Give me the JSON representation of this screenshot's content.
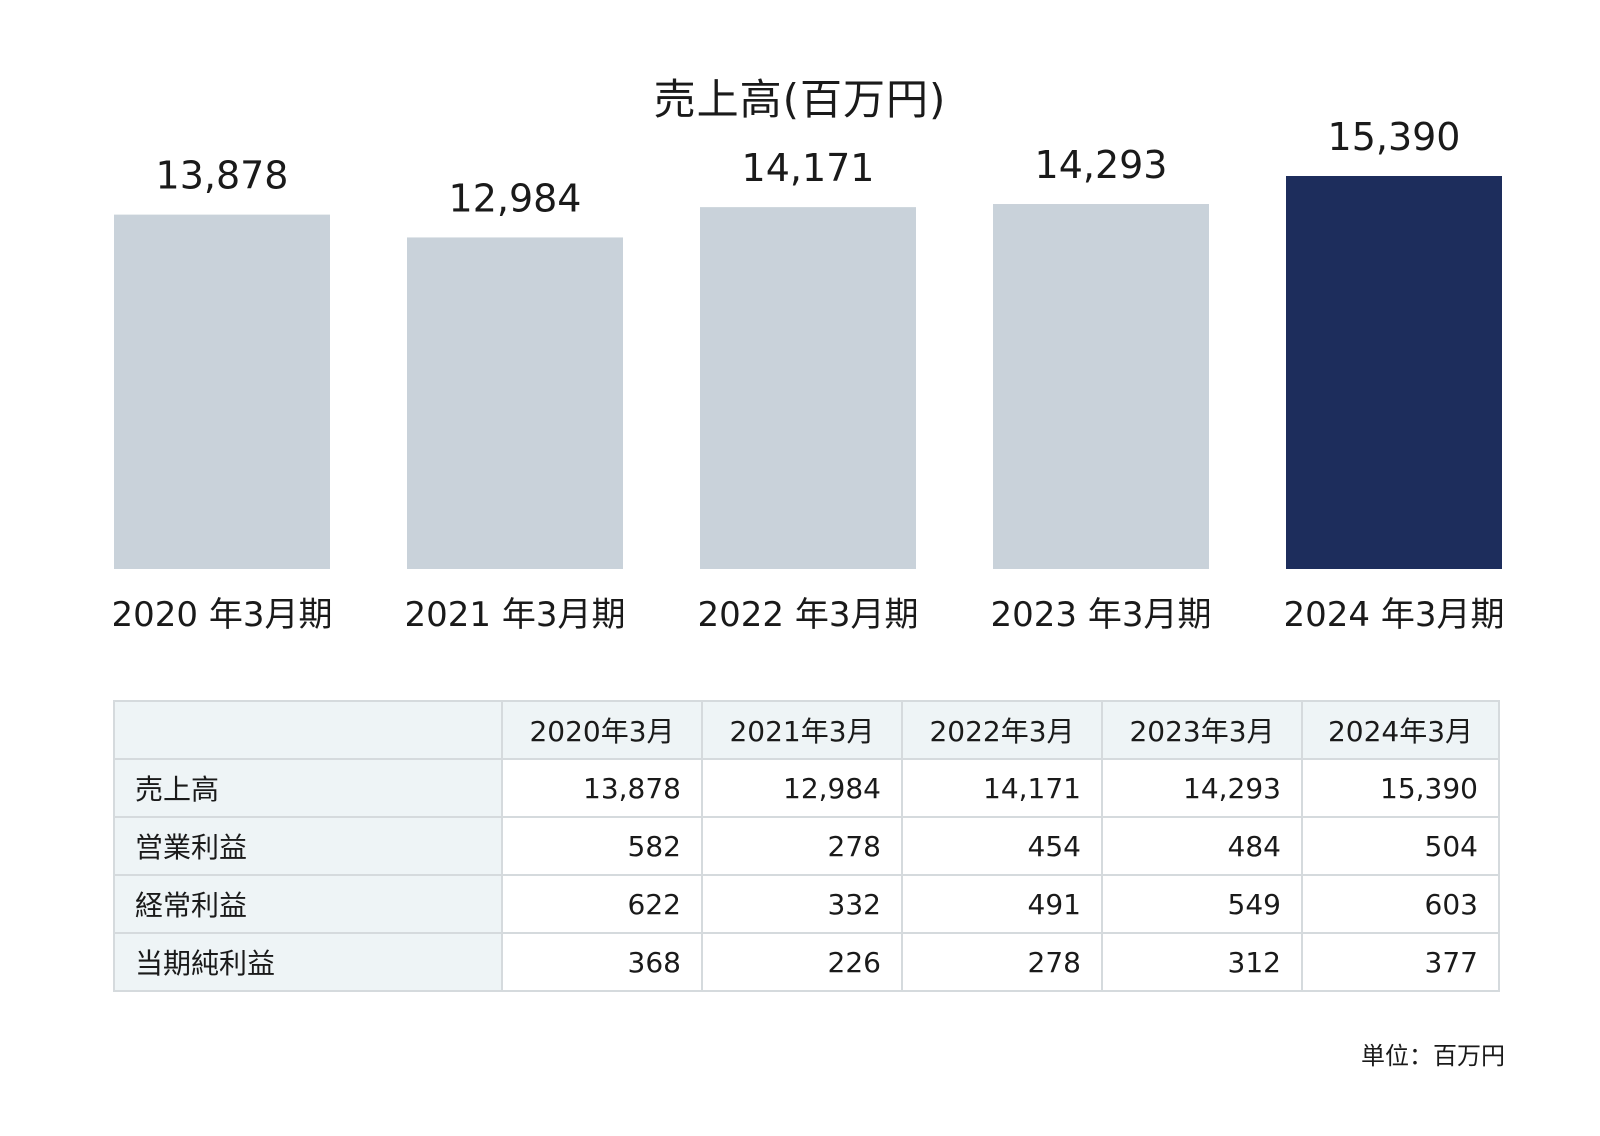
{
  "chart_data": {
    "type": "bar",
    "title": "売上高(百万円)",
    "categories": [
      "2020 年3月期",
      "2021 年3月期",
      "2022 年3月期",
      "2023 年3月期",
      "2024 年3月期"
    ],
    "values": [
      13878,
      12984,
      14171,
      14293,
      15390
    ],
    "value_labels": [
      "13,878",
      "12,984",
      "14,171",
      "14,293",
      "15,390"
    ],
    "highlight_index": 4,
    "colors": {
      "bar": "#c9d2da",
      "highlight": "#1d2d5c"
    },
    "ylim": [
      0,
      16000
    ],
    "xlabel": "",
    "ylabel": "",
    "grid": false,
    "legend": "none"
  },
  "table": {
    "columns": [
      "",
      "2020年3月",
      "2021年3月",
      "2022年3月",
      "2023年3月",
      "2024年3月"
    ],
    "rows": [
      {
        "label": "売上高",
        "values": [
          "13,878",
          "12,984",
          "14,171",
          "14,293",
          "15,390"
        ]
      },
      {
        "label": "営業利益",
        "values": [
          "582",
          "278",
          "454",
          "484",
          "504"
        ]
      },
      {
        "label": "経常利益",
        "values": [
          "622",
          "332",
          "491",
          "549",
          "603"
        ]
      },
      {
        "label": "当期純利益",
        "values": [
          "368",
          "226",
          "278",
          "312",
          "377"
        ]
      }
    ]
  },
  "unit_note": "単位：百万円"
}
